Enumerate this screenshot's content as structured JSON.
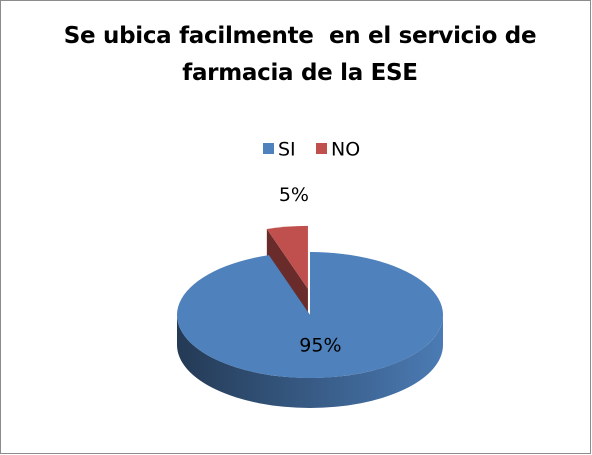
{
  "chart_data": {
    "type": "pie",
    "title": "Se ubica facilmente  en el servicio de farmacia de la ESE",
    "categories": [
      "SI",
      "NO"
    ],
    "values": [
      95,
      5
    ],
    "value_labels": [
      "95%",
      "5%"
    ],
    "colors": [
      "#4f81bd",
      "#c0504d"
    ],
    "legend": "top"
  }
}
